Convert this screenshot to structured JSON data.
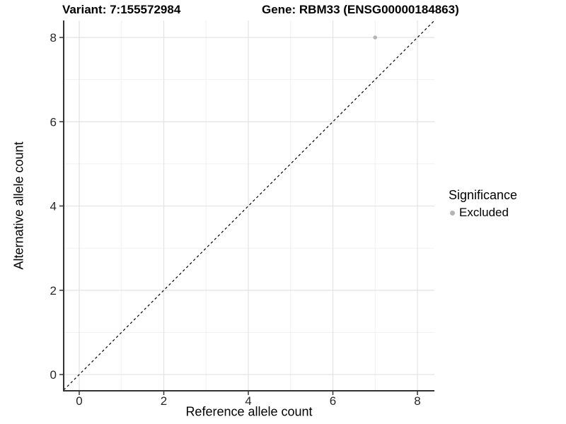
{
  "title": {
    "variant": "Variant: 7:155572984",
    "gene": "Gene: RBM33 (ENSG00000184863)"
  },
  "chart_data": {
    "type": "scatter",
    "xlabel": "Reference allele count",
    "ylabel": "Alternative allele count",
    "xlim": [
      -0.4,
      8.4
    ],
    "ylim": [
      -0.4,
      8.4
    ],
    "x_ticks": [
      0,
      2,
      4,
      6,
      8
    ],
    "y_ticks": [
      0,
      2,
      4,
      6,
      8
    ],
    "x_minor_ticks": [
      1,
      3,
      5,
      7
    ],
    "y_minor_ticks": [
      1,
      3,
      5,
      7
    ],
    "grid": true,
    "points": [
      {
        "x": 7,
        "y": 8,
        "series": "Excluded"
      }
    ],
    "reference_line": {
      "type": "identity",
      "slope": 1,
      "intercept": 0,
      "style": "dashed"
    },
    "legend": {
      "title": "Significance",
      "position": "right",
      "entries": [
        {
          "label": "Excluded",
          "color": "#b4b4b4"
        }
      ]
    }
  },
  "colors": {
    "point": "#b4b4b4",
    "major_grid": "#e3e3e3",
    "minor_grid": "#f0f0f0",
    "axis_line": "#333333",
    "tick_mark": "#333333",
    "tick_label": "#262626",
    "reference_line": "#000000",
    "background": "#ffffff"
  }
}
